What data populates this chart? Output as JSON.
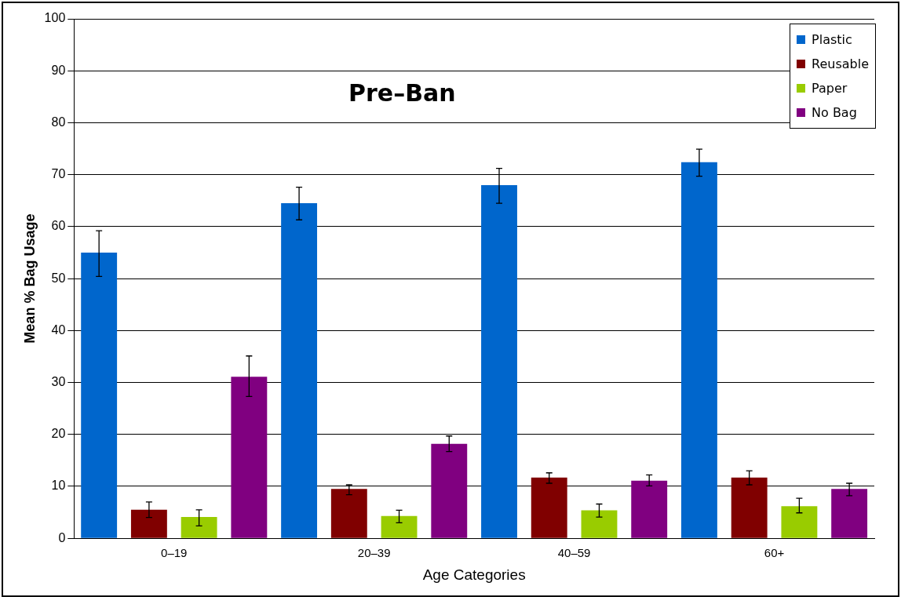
{
  "chart_data": {
    "type": "bar",
    "title": "Pre–Ban",
    "xlabel": "Age Categories",
    "ylabel": "Mean % Bag Usage",
    "categories": [
      "0–19",
      "20–39",
      "40–59",
      "60+"
    ],
    "series": [
      {
        "name": "Plastic",
        "color": "#0066cc",
        "values": [
          55,
          64.5,
          68,
          72.4
        ],
        "errors": [
          [
            50.4,
            59.2
          ],
          [
            61.3,
            67.6
          ],
          [
            64.5,
            71.2
          ],
          [
            69.7,
            74.9
          ]
        ]
      },
      {
        "name": "Reusable",
        "color": "#800000",
        "values": [
          5.5,
          9.5,
          11.7,
          11.7
        ],
        "errors": [
          [
            4,
            7
          ],
          [
            8.4,
            10.3
          ],
          [
            10.6,
            12.6
          ],
          [
            10.3,
            13
          ]
        ]
      },
      {
        "name": "Paper",
        "color": "#99cc00",
        "values": [
          4.1,
          4.3,
          5.4,
          6.2
        ],
        "errors": [
          [
            2.4,
            5.5
          ],
          [
            3,
            5.4
          ],
          [
            4.1,
            6.6
          ],
          [
            4.9,
            7.7
          ]
        ]
      },
      {
        "name": "No Bag",
        "color": "#800080",
        "values": [
          31.1,
          18.2,
          11.1,
          9.5
        ],
        "errors": [
          [
            27.3,
            35.1
          ],
          [
            16.7,
            19.7
          ],
          [
            10.1,
            12.2
          ],
          [
            8.2,
            10.6
          ]
        ]
      }
    ],
    "ylim": [
      0,
      100
    ],
    "yticks": [
      0,
      10,
      20,
      30,
      40,
      50,
      60,
      70,
      80,
      90,
      100
    ],
    "grid": "y",
    "legend": "top right"
  }
}
